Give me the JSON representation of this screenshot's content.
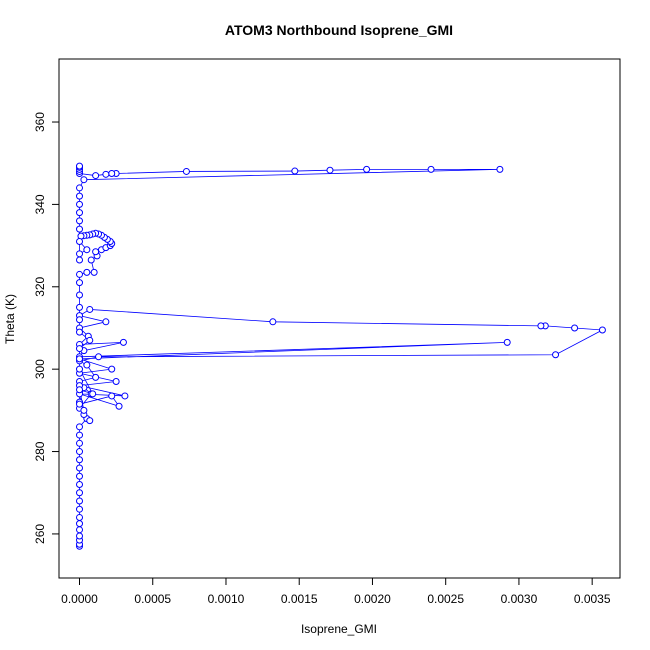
{
  "chart_data": {
    "type": "scatter",
    "title": "ATOM3 Northbound Isoprene_GMI",
    "xlabel": "Isoprene_GMI",
    "ylabel": "Theta (K)",
    "xlim": [
      -0.00014,
      0.00369
    ],
    "ylim": [
      249.3,
      375.3
    ],
    "x_ticks": [
      0,
      0.0005,
      0.001,
      0.0015,
      0.002,
      0.0025,
      0.003,
      0.0035
    ],
    "x_tick_labels": [
      "0.0000",
      "0.0005",
      "0.0010",
      "0.0015",
      "0.0020",
      "0.0025",
      "0.0030",
      "0.0035"
    ],
    "y_ticks": [
      260,
      280,
      300,
      320,
      340,
      360
    ],
    "y_tick_labels": [
      "260",
      "280",
      "300",
      "320",
      "340",
      "360"
    ],
    "grid": false,
    "legend": "none",
    "series": [
      {
        "color": "#0000ff",
        "marker": "open-circle",
        "connect": true,
        "points": [
          [
            0.0,
            257.0
          ],
          [
            0.0,
            257.5
          ],
          [
            0.0,
            258.5
          ],
          [
            0.0,
            259.5
          ],
          [
            0.0,
            261.0
          ],
          [
            0.0,
            262.5
          ],
          [
            0.0,
            264.0
          ],
          [
            0.0,
            266.0
          ],
          [
            0.0,
            268.0
          ],
          [
            0.0,
            270.0
          ],
          [
            0.0,
            272.0
          ],
          [
            0.0,
            274.0
          ],
          [
            0.0,
            276.0
          ],
          [
            0.0,
            278.0
          ],
          [
            0.0,
            280.0
          ],
          [
            0.0,
            282.0
          ],
          [
            0.0,
            284.0
          ],
          [
            0.0,
            286.0
          ],
          [
            5e-05,
            288.0
          ],
          [
            7e-05,
            287.5
          ],
          [
            3e-05,
            289.0
          ],
          [
            0.0,
            290.5
          ],
          [
            8e-05,
            294.0
          ],
          [
            3e-05,
            295.5
          ],
          [
            0.0,
            292.0
          ],
          [
            0.0,
            297.0
          ],
          [
            0.00011,
            298.0
          ],
          [
            5e-05,
            301.0
          ],
          [
            0.0,
            302.0
          ],
          [
            0.00013,
            303.0
          ],
          [
            0.00325,
            303.5
          ],
          [
            0.00357,
            309.5
          ],
          [
            0.00338,
            310.0
          ],
          [
            0.00318,
            310.5
          ],
          [
            0.00315,
            310.5
          ],
          [
            0.00132,
            311.5
          ],
          [
            7e-05,
            314.5
          ],
          [
            0.0,
            313.0
          ],
          [
            0.00018,
            311.5
          ],
          [
            0.0,
            310.0
          ],
          [
            6e-05,
            308.0
          ],
          [
            0.0,
            306.0
          ],
          [
            0.0003,
            306.5
          ],
          [
            3e-05,
            304.5
          ],
          [
            0.0,
            303.0
          ],
          [
            0.00292,
            306.5
          ],
          [
            0.0,
            302.5
          ],
          [
            0.00022,
            300.0
          ],
          [
            0.0,
            299.0
          ],
          [
            0.00025,
            297.0
          ],
          [
            0.0,
            296.0
          ],
          [
            0.00031,
            293.5
          ],
          [
            0.0,
            294.0
          ],
          [
            0.00027,
            291.0
          ],
          [
            0.00022,
            293.5
          ],
          [
            0.0,
            291.5
          ],
          [
            3e-05,
            290.0
          ],
          [
            0.0,
            295.0
          ],
          [
            9e-05,
            294.0
          ],
          [
            0.0,
            300.0
          ],
          [
            0.0,
            305.0
          ],
          [
            7e-05,
            307.0
          ],
          [
            0.0,
            309.0
          ],
          [
            0.0,
            312.0
          ],
          [
            0.0,
            315.0
          ],
          [
            0.0,
            318.0
          ],
          [
            0.0,
            321.0
          ],
          [
            0.0,
            323.0
          ],
          [
            5e-05,
            323.5
          ],
          [
            0.0001,
            323.5
          ],
          [
            8e-05,
            326.5
          ],
          [
            0.00012,
            327.5
          ],
          [
            0.00011,
            328.5
          ],
          [
            0.00015,
            329.0
          ],
          [
            0.00018,
            329.5
          ],
          [
            0.00021,
            330.0
          ],
          [
            0.00022,
            330.5
          ],
          [
            0.00021,
            331.0
          ],
          [
            0.00019,
            331.5
          ],
          [
            0.00017,
            332.0
          ],
          [
            0.00015,
            332.5
          ],
          [
            0.00013,
            332.8
          ],
          [
            0.00011,
            333.0
          ],
          [
            9e-05,
            332.8
          ],
          [
            7e-05,
            332.6
          ],
          [
            5e-05,
            332.5
          ],
          [
            3e-05,
            332.4
          ],
          [
            1e-05,
            332.3
          ],
          [
            0.0,
            331.0
          ],
          [
            5e-05,
            329.0
          ],
          [
            0.0,
            328.0
          ],
          [
            0.0,
            326.5
          ],
          [
            0.0,
            334.0
          ],
          [
            0.0,
            336.0
          ],
          [
            0.0,
            338.0
          ],
          [
            0.0,
            340.0
          ],
          [
            0.0,
            342.0
          ],
          [
            0.0,
            344.0
          ],
          [
            3e-05,
            346.0
          ],
          [
            0.00287,
            348.5
          ],
          [
            0.0024,
            348.5
          ],
          [
            0.00196,
            348.5
          ],
          [
            0.00171,
            348.3
          ],
          [
            0.00147,
            348.1
          ],
          [
            0.00073,
            348.0
          ],
          [
            0.00025,
            347.5
          ],
          [
            0.00022,
            347.5
          ],
          [
            0.00018,
            347.3
          ],
          [
            0.00011,
            347.0
          ],
          [
            0.0,
            347.5
          ],
          [
            0.0,
            348.0
          ],
          [
            0.0,
            348.5
          ],
          [
            0.0,
            349.0
          ],
          [
            0.0,
            349.3
          ]
        ]
      }
    ]
  }
}
